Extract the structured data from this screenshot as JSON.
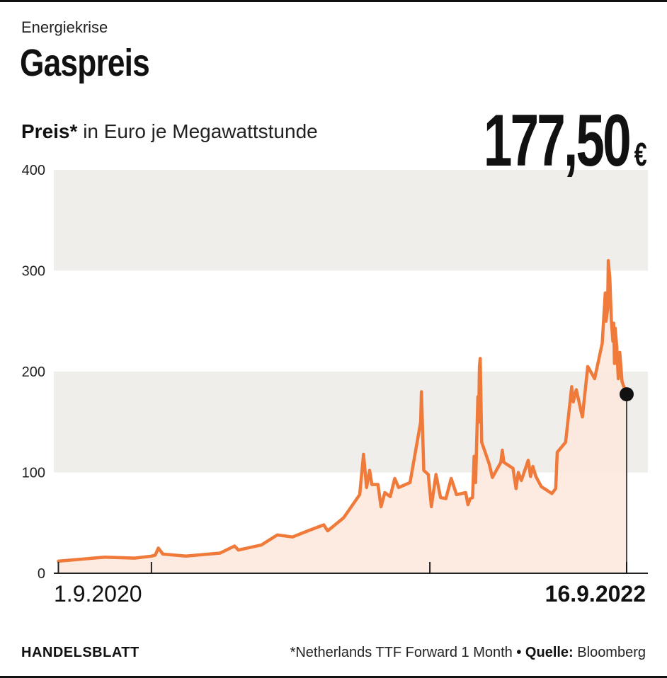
{
  "header": {
    "kicker": "Energiekrise",
    "title": "Gaspreis",
    "subtitle_bold": "Preis*",
    "subtitle_rest": "in Euro je Megawattstunde",
    "latest_value": "177,50",
    "latest_unit": "€"
  },
  "footer": {
    "brand": "HANDELSBLATT",
    "note": "*Netherlands TTF Forward 1 Month",
    "bullet": "•",
    "source_label": "Quelle:",
    "source": "Bloomberg"
  },
  "colors": {
    "line": "#f07a3a",
    "area": "#fde6dc",
    "band": "#f0eeeb",
    "text": "#111111",
    "axis": "#222222"
  },
  "chart_data": {
    "type": "area",
    "title": "Gaspreis",
    "ylabel": "in Euro je Megawattstunde",
    "ylim": [
      0,
      400
    ],
    "yticks": [
      0,
      100,
      200,
      300,
      400
    ],
    "xlim": [
      "2020-08-26",
      "2022-09-16"
    ],
    "x_tick_marks": [
      "2020-09-01",
      "2021-01-01",
      "2022-01-01",
      "2022-09-16"
    ],
    "x_labels": [
      {
        "x": "2020-09-01",
        "label": "1.9.2020",
        "bold": false
      },
      {
        "x": "2022-09-16",
        "label": "16.9.2022",
        "bold": true
      }
    ],
    "grid": "alternating bands",
    "end_marker": {
      "x": "2022-09-16",
      "y": 177.5
    },
    "series": [
      {
        "points": [
          [
            "2020-09-01",
            12
          ],
          [
            "2020-11-01",
            16
          ],
          [
            "2020-12-10",
            15
          ],
          [
            "2021-01-01",
            17
          ],
          [
            "2021-01-06",
            18
          ],
          [
            "2021-01-10",
            25
          ],
          [
            "2021-01-16",
            19
          ],
          [
            "2021-02-15",
            17
          ],
          [
            "2021-04-01",
            20
          ],
          [
            "2021-04-20",
            27
          ],
          [
            "2021-04-25",
            23
          ],
          [
            "2021-05-25",
            28
          ],
          [
            "2021-06-15",
            38
          ],
          [
            "2021-07-05",
            36
          ],
          [
            "2021-07-25",
            42
          ],
          [
            "2021-08-15",
            48
          ],
          [
            "2021-08-20",
            42
          ],
          [
            "2021-09-10",
            55
          ],
          [
            "2021-10-01",
            78
          ],
          [
            "2021-10-06",
            118
          ],
          [
            "2021-10-10",
            85
          ],
          [
            "2021-10-14",
            102
          ],
          [
            "2021-10-17",
            88
          ],
          [
            "2021-10-25",
            88
          ],
          [
            "2021-10-29",
            66
          ],
          [
            "2021-11-03",
            80
          ],
          [
            "2021-11-10",
            76
          ],
          [
            "2021-11-16",
            94
          ],
          [
            "2021-11-21",
            85
          ],
          [
            "2021-12-06",
            90
          ],
          [
            "2021-12-20",
            150
          ],
          [
            "2021-12-21",
            180
          ],
          [
            "2021-12-24",
            102
          ],
          [
            "2021-12-30",
            98
          ],
          [
            "2022-01-03",
            66
          ],
          [
            "2022-01-09",
            98
          ],
          [
            "2022-01-15",
            75
          ],
          [
            "2022-01-22",
            74
          ],
          [
            "2022-01-29",
            94
          ],
          [
            "2022-02-05",
            78
          ],
          [
            "2022-02-17",
            80
          ],
          [
            "2022-02-20",
            68
          ],
          [
            "2022-02-23",
            74
          ],
          [
            "2022-02-26",
            75
          ],
          [
            "2022-02-28",
            116
          ],
          [
            "2022-03-02",
            90
          ],
          [
            "2022-03-05",
            175
          ],
          [
            "2022-03-06",
            150
          ],
          [
            "2022-03-07",
            205
          ],
          [
            "2022-03-08",
            213
          ],
          [
            "2022-03-10",
            130
          ],
          [
            "2022-03-20",
            108
          ],
          [
            "2022-03-24",
            95
          ],
          [
            "2022-04-04",
            110
          ],
          [
            "2022-04-06",
            122
          ],
          [
            "2022-04-08",
            110
          ],
          [
            "2022-04-20",
            104
          ],
          [
            "2022-04-24",
            84
          ],
          [
            "2022-04-27",
            100
          ],
          [
            "2022-05-01",
            92
          ],
          [
            "2022-05-10",
            112
          ],
          [
            "2022-05-13",
            96
          ],
          [
            "2022-05-16",
            106
          ],
          [
            "2022-05-20",
            96
          ],
          [
            "2022-05-27",
            86
          ],
          [
            "2022-06-10",
            79
          ],
          [
            "2022-06-15",
            84
          ],
          [
            "2022-06-17",
            120
          ],
          [
            "2022-06-28",
            130
          ],
          [
            "2022-07-06",
            185
          ],
          [
            "2022-07-08",
            170
          ],
          [
            "2022-07-12",
            182
          ],
          [
            "2022-07-20",
            155
          ],
          [
            "2022-07-27",
            205
          ],
          [
            "2022-08-05",
            193
          ],
          [
            "2022-08-15",
            228
          ],
          [
            "2022-08-19",
            278
          ],
          [
            "2022-08-20",
            250
          ],
          [
            "2022-08-22",
            262
          ],
          [
            "2022-08-23",
            310
          ],
          [
            "2022-08-25",
            292
          ],
          [
            "2022-08-26",
            270
          ],
          [
            "2022-08-27",
            250
          ],
          [
            "2022-08-29",
            230
          ],
          [
            "2022-08-30",
            248
          ],
          [
            "2022-08-31",
            208
          ],
          [
            "2022-09-01",
            243
          ],
          [
            "2022-09-03",
            225
          ],
          [
            "2022-09-05",
            193
          ],
          [
            "2022-09-07",
            219
          ],
          [
            "2022-09-10",
            190
          ],
          [
            "2022-09-16",
            177.5
          ]
        ]
      }
    ]
  }
}
